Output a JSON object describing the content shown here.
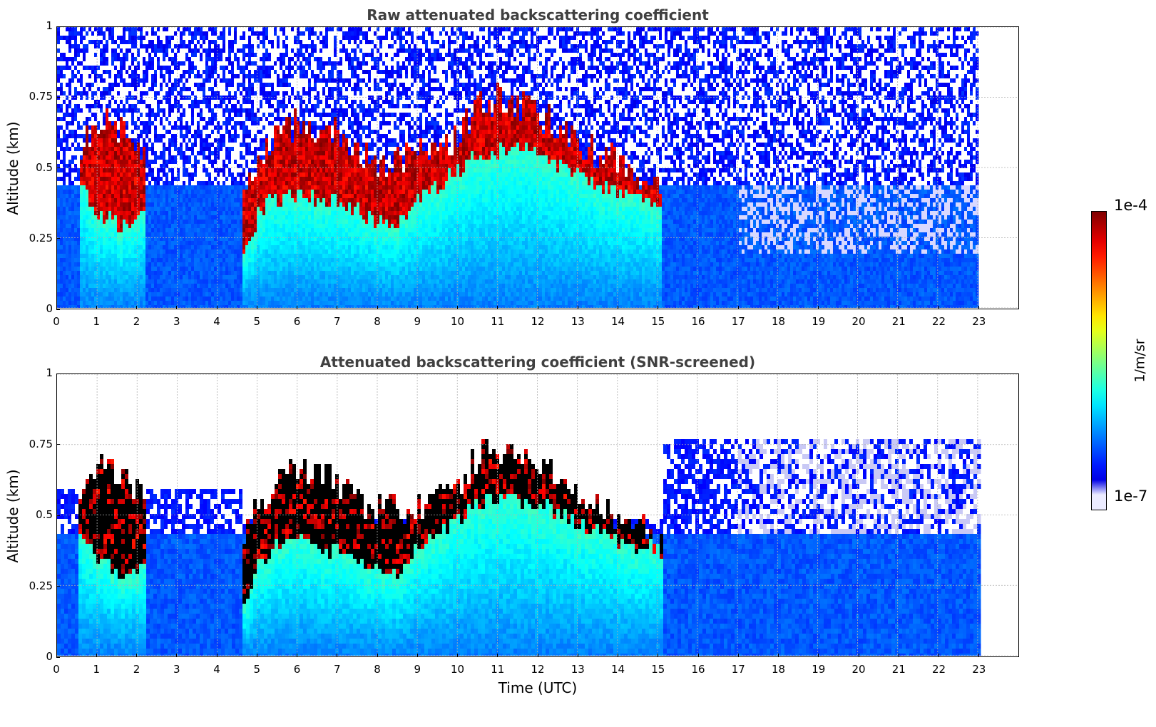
{
  "panels": [
    {
      "id": "raw",
      "title": "Raw attenuated backscattering coefficient",
      "ylabel": "Altitude (km)",
      "xlabel": ""
    },
    {
      "id": "snr",
      "title": "Attenuated backscattering coefficient (SNR-screened)",
      "ylabel": "Altitude (km)",
      "xlabel": "Time (UTC)"
    }
  ],
  "colorbar": {
    "max_label": "1e-4",
    "min_label": "1e-7",
    "unit": "1/m/sr",
    "colormap": "jet"
  },
  "chart_data": [
    {
      "type": "heatmap",
      "title": "Raw attenuated backscattering coefficient",
      "xlabel": "",
      "ylabel": "Altitude (km)",
      "x_ticks": [
        "0",
        "1",
        "2",
        "3",
        "4",
        "5",
        "6",
        "7",
        "8",
        "9",
        "10",
        "11",
        "12",
        "13",
        "14",
        "15",
        "16",
        "17",
        "18",
        "19",
        "20",
        "21",
        "22",
        "23"
      ],
      "y_ticks": [
        "0",
        "0.25",
        "0.5",
        "0.75",
        "1"
      ],
      "xlim": [
        0,
        24
      ],
      "ylim": [
        0,
        1
      ],
      "data_end_hour": 23,
      "grid": true,
      "color_scale": "log",
      "color_range": [
        1e-07,
        0.0001
      ],
      "cloud_base_km": {
        "time_utc": [
          0.5,
          1,
          1.5,
          2,
          2.2,
          4.6,
          4.8,
          5,
          5.5,
          6,
          6.5,
          7,
          7.5,
          8,
          8.5,
          9,
          9.5,
          10,
          10.5,
          11,
          11.5,
          12,
          12.5,
          13,
          13.5,
          14,
          14.5,
          15
        ],
        "altitude": [
          0.45,
          0.35,
          0.3,
          0.32,
          0.35,
          0.18,
          0.25,
          0.35,
          0.4,
          0.42,
          0.4,
          0.38,
          0.35,
          0.32,
          0.3,
          0.4,
          0.45,
          0.5,
          0.55,
          0.57,
          0.57,
          0.55,
          0.52,
          0.48,
          0.45,
          0.42,
          0.4,
          0.38
        ]
      },
      "cloud_top_km": {
        "time_utc": [
          0.5,
          1,
          1.5,
          2,
          2.2,
          4.6,
          4.8,
          5,
          5.5,
          6,
          6.5,
          7,
          7.5,
          8,
          8.5,
          9,
          9.5,
          10,
          10.5,
          11,
          11.5,
          12,
          12.5,
          13,
          13.5,
          14,
          14.5,
          15
        ],
        "altitude": [
          0.58,
          0.68,
          0.65,
          0.6,
          0.55,
          0.45,
          0.5,
          0.55,
          0.62,
          0.68,
          0.65,
          0.62,
          0.55,
          0.52,
          0.54,
          0.55,
          0.58,
          0.62,
          0.72,
          0.75,
          0.73,
          0.7,
          0.65,
          0.6,
          0.55,
          0.52,
          0.48,
          0.45
        ]
      }
    },
    {
      "type": "heatmap",
      "title": "Attenuated backscattering coefficient (SNR-screened)",
      "xlabel": "Time (UTC)",
      "ylabel": "Altitude (km)",
      "x_ticks": [
        "0",
        "1",
        "2",
        "3",
        "4",
        "5",
        "6",
        "7",
        "8",
        "9",
        "10",
        "11",
        "12",
        "13",
        "14",
        "15",
        "16",
        "17",
        "18",
        "19",
        "20",
        "21",
        "22",
        "23"
      ],
      "y_ticks": [
        "0",
        "0.25",
        "0.5",
        "0.75",
        "1"
      ],
      "xlim": [
        0,
        24
      ],
      "ylim": [
        0,
        1
      ],
      "data_end_hour": 23,
      "grid": true,
      "color_scale": "log",
      "color_range": [
        1e-07,
        0.0001
      ],
      "saturated_color": "#000000"
    }
  ]
}
